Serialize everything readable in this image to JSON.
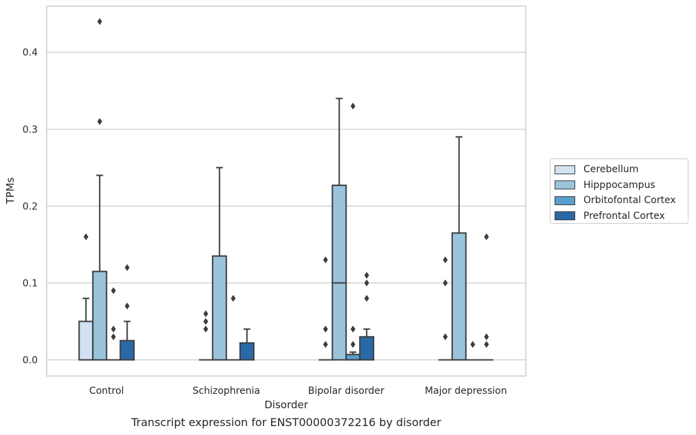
{
  "caption": "Transcript expression for ENST00000372216 by disorder",
  "chart_data": {
    "type": "box",
    "xlabel": "Disorder",
    "ylabel": "TPMs",
    "ylim": [
      -0.021,
      0.46
    ],
    "yticks": [
      0.0,
      0.1,
      0.2,
      0.3,
      0.4
    ],
    "ytick_labels": [
      "0.0",
      "0.1",
      "0.2",
      "0.3",
      "0.4"
    ],
    "grid": "horizontal",
    "legend_position": "right",
    "categories": [
      "Control",
      "Schizophrenia",
      "Bipolar disorder",
      "Major depression"
    ],
    "series": [
      {
        "name": "Cerebellum",
        "color": "#d1e2f2",
        "boxes": [
          {
            "q1": 0,
            "median": 0,
            "q3": 0.05,
            "whisker_low": 0,
            "whisker_high": 0.08,
            "outliers": [
              0.16
            ]
          },
          {
            "q1": 0,
            "median": 0,
            "q3": 0,
            "whisker_low": 0,
            "whisker_high": 0,
            "outliers": [
              0.04,
              0.05,
              0.06
            ]
          },
          {
            "q1": 0,
            "median": 0,
            "q3": 0,
            "whisker_low": 0,
            "whisker_high": 0,
            "outliers": [
              0.02,
              0.04,
              0.13
            ]
          },
          {
            "q1": 0,
            "median": 0,
            "q3": 0,
            "whisker_low": 0,
            "whisker_high": 0,
            "outliers": [
              0.03,
              0.1,
              0.13
            ]
          }
        ]
      },
      {
        "name": "Hipppocampus",
        "color": "#9ac3dc",
        "boxes": [
          {
            "q1": 0,
            "median": 0,
            "q3": 0.115,
            "whisker_low": 0,
            "whisker_high": 0.24,
            "outliers": [
              0.31,
              0.44
            ]
          },
          {
            "q1": 0,
            "median": 0,
            "q3": 0.135,
            "whisker_low": 0,
            "whisker_high": 0.25,
            "outliers": []
          },
          {
            "q1": 0,
            "median": 0.1,
            "q3": 0.227,
            "whisker_low": 0,
            "whisker_high": 0.34,
            "outliers": []
          },
          {
            "q1": 0,
            "median": 0,
            "q3": 0.165,
            "whisker_low": 0,
            "whisker_high": 0.29,
            "outliers": []
          }
        ]
      },
      {
        "name": "Orbitofontal Cortex",
        "color": "#5a9ecc",
        "boxes": [
          {
            "q1": 0,
            "median": 0,
            "q3": 0,
            "whisker_low": 0,
            "whisker_high": 0,
            "outliers": [
              0.03,
              0.04,
              0.09
            ]
          },
          {
            "q1": 0,
            "median": 0,
            "q3": 0,
            "whisker_low": 0,
            "whisker_high": 0,
            "outliers": [
              0.08
            ]
          },
          {
            "q1": 0,
            "median": 0,
            "q3": 0.007,
            "whisker_low": 0,
            "whisker_high": 0.01,
            "outliers": [
              0.02,
              0.04,
              0.33
            ]
          },
          {
            "q1": 0,
            "median": 0,
            "q3": 0,
            "whisker_low": 0,
            "whisker_high": 0,
            "outliers": [
              0.02
            ]
          }
        ]
      },
      {
        "name": "Prefrontal Cortex",
        "color": "#2a69a8",
        "boxes": [
          {
            "q1": 0,
            "median": 0,
            "q3": 0.025,
            "whisker_low": 0,
            "whisker_high": 0.05,
            "outliers": [
              0.07,
              0.12
            ]
          },
          {
            "q1": 0,
            "median": 0,
            "q3": 0.022,
            "whisker_low": 0,
            "whisker_high": 0.04,
            "outliers": []
          },
          {
            "q1": 0,
            "median": 0,
            "q3": 0.03,
            "whisker_low": 0,
            "whisker_high": 0.04,
            "outliers": [
              0.08,
              0.1,
              0.11
            ]
          },
          {
            "q1": 0,
            "median": 0,
            "q3": 0,
            "whisker_low": 0,
            "whisker_high": 0,
            "outliers": [
              0.02,
              0.03,
              0.16
            ]
          }
        ]
      }
    ]
  }
}
